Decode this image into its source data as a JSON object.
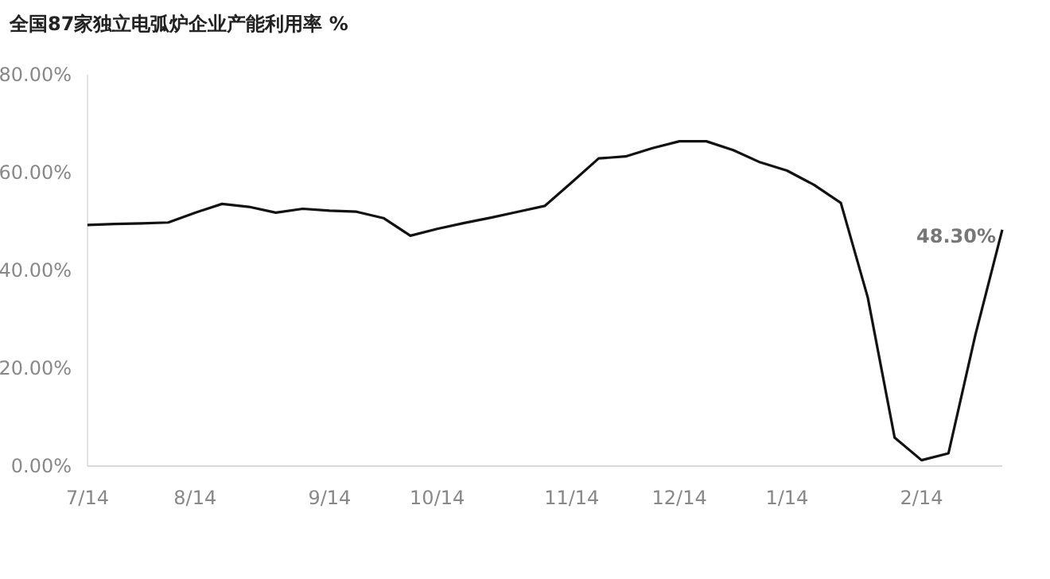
{
  "chart_data": {
    "type": "line",
    "title": "全国87家独立电弧炉企业产能利用率 %",
    "categories": [
      "7/14",
      null,
      null,
      null,
      "8/14",
      null,
      null,
      null,
      null,
      "9/14",
      null,
      null,
      null,
      "10/14",
      null,
      null,
      null,
      null,
      "11/14",
      null,
      null,
      null,
      "12/14",
      null,
      null,
      null,
      "1/14",
      null,
      null,
      null,
      null,
      "2/14",
      null,
      null,
      null
    ],
    "series": [
      {
        "color": "#111111",
        "values": [
          49.3,
          49.5,
          49.6,
          49.8,
          51.8,
          53.6,
          53.0,
          51.8,
          52.6,
          52.2,
          52.0,
          50.7,
          47.1,
          48.5,
          49.7,
          50.8,
          52.0,
          53.2,
          58.0,
          62.9,
          63.3,
          65.0,
          66.4,
          66.4,
          64.6,
          62.1,
          60.4,
          57.5,
          53.8,
          34.5,
          5.8,
          1.2,
          2.6,
          26.8,
          48.3
        ]
      }
    ],
    "ylim": [
      0,
      80
    ],
    "yticks": [
      {
        "value": 0,
        "label": "0.00%"
      },
      {
        "value": 20,
        "label": "20.00%"
      },
      {
        "value": 40,
        "label": "40.00%"
      },
      {
        "value": 60,
        "label": "60.00%"
      },
      {
        "value": 80,
        "label": "80.00%"
      }
    ],
    "grid": false,
    "marker": "none",
    "line_style": "solid",
    "annotations": [
      "48.30%"
    ]
  }
}
